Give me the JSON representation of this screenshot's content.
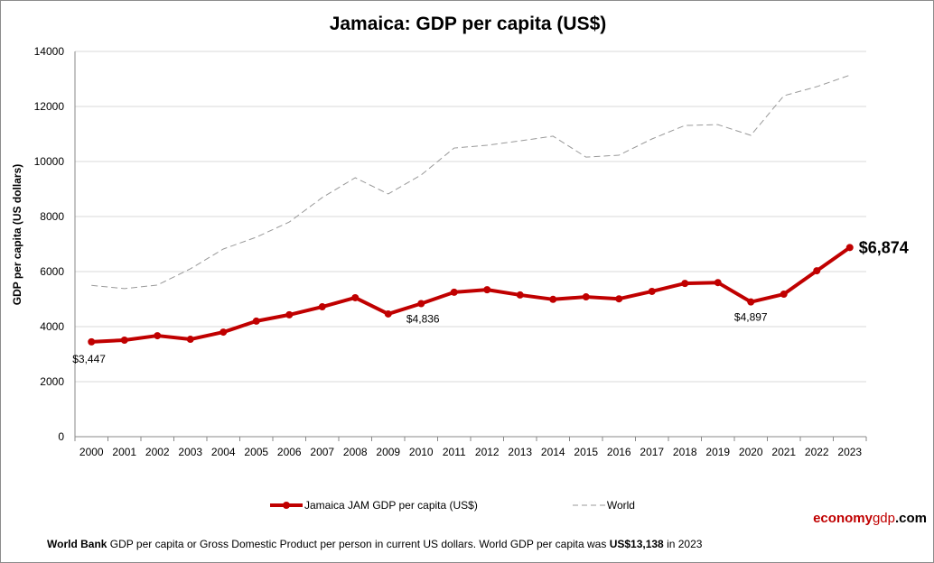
{
  "chart_data": {
    "type": "line",
    "title": "Jamaica: GDP per capita (US$)",
    "ylabel": "GDP per capita (US dollars)",
    "xlabel": "",
    "ylim": [
      0,
      14000
    ],
    "yticks": [
      0,
      2000,
      4000,
      6000,
      8000,
      10000,
      12000,
      14000
    ],
    "grid": true,
    "legend_position": "bottom",
    "categories": [
      "2000",
      "2001",
      "2002",
      "2003",
      "2004",
      "2005",
      "2006",
      "2007",
      "2008",
      "2009",
      "2010",
      "2011",
      "2012",
      "2013",
      "2014",
      "2015",
      "2016",
      "2017",
      "2018",
      "2019",
      "2020",
      "2021",
      "2022",
      "2023"
    ],
    "series": [
      {
        "name": "Jamaica JAM GDP per capita (US$)",
        "color": "#c00000",
        "style": "solid-markers",
        "values": [
          3447,
          3508,
          3670,
          3540,
          3800,
          4200,
          4430,
          4720,
          5050,
          4460,
          4836,
          5250,
          5340,
          5150,
          4990,
          5080,
          5010,
          5280,
          5570,
          5600,
          4897,
          5180,
          6030,
          6874
        ]
      },
      {
        "name": "World",
        "color": "#999999",
        "style": "dashed",
        "values": [
          5500,
          5380,
          5510,
          6100,
          6820,
          7250,
          7800,
          8690,
          9410,
          8820,
          9510,
          10490,
          10590,
          10750,
          10920,
          10160,
          10230,
          10820,
          11310,
          11340,
          10950,
          12390,
          12720,
          13138
        ]
      }
    ],
    "annotations": [
      {
        "x": "2000",
        "text": "$3,447"
      },
      {
        "x": "2010",
        "text": "$4,836"
      },
      {
        "x": "2020",
        "text": "$4,897"
      },
      {
        "x": "2023",
        "text": "$6,874"
      }
    ]
  },
  "brand": {
    "part1": "economy",
    "part2": "gdp",
    "part3": ".com"
  },
  "footer": {
    "source": "World Bank",
    "text1": " GDP per capita or Gross Domestic Product per person  in current US dollars.    World GDP per capita was ",
    "world_value": "US$13,138",
    "text2": "  in 2023"
  }
}
